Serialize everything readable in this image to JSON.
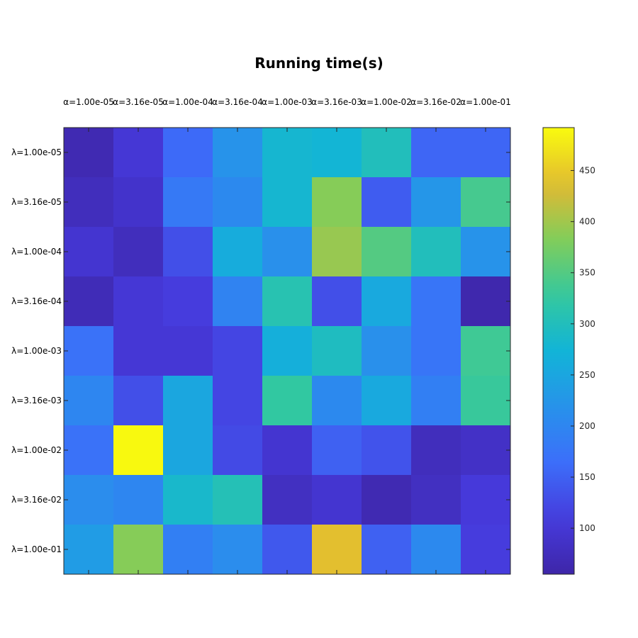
{
  "chart_data": {
    "type": "heatmap",
    "title": "Running time(s)",
    "xlabel": "",
    "ylabel": "",
    "x_categories": [
      "α=1.00e-05",
      "α=3.16e-05",
      "α=1.00e-04",
      "α=3.16e-04",
      "α=1.00e-03",
      "α=3.16e-03",
      "α=1.00e-02",
      "α=3.16e-02",
      "α=1.00e-01"
    ],
    "y_categories": [
      "λ=1.00e-05",
      "λ=3.16e-05",
      "λ=1.00e-04",
      "λ=3.16e-04",
      "λ=1.00e-03",
      "λ=3.16e-03",
      "λ=1.00e-02",
      "λ=3.16e-02",
      "λ=1.00e-01"
    ],
    "values": [
      [
        65,
        100,
        160,
        220,
        280,
        275,
        300,
        155,
        155
      ],
      [
        75,
        90,
        180,
        205,
        280,
        385,
        145,
        225,
        340
      ],
      [
        95,
        75,
        130,
        260,
        215,
        395,
        350,
        300,
        220
      ],
      [
        70,
        100,
        110,
        195,
        310,
        130,
        255,
        175,
        60
      ],
      [
        170,
        100,
        100,
        120,
        265,
        295,
        215,
        175,
        335
      ],
      [
        200,
        130,
        250,
        120,
        325,
        205,
        255,
        190,
        330
      ],
      [
        170,
        490,
        250,
        125,
        95,
        150,
        135,
        75,
        85
      ],
      [
        210,
        200,
        285,
        305,
        80,
        95,
        65,
        80,
        105
      ],
      [
        235,
        385,
        190,
        210,
        140,
        440,
        150,
        205,
        110
      ]
    ],
    "colorbar": {
      "ticks": [
        100,
        150,
        200,
        250,
        300,
        350,
        400,
        450
      ],
      "range": [
        55,
        492
      ]
    },
    "colormap": "parula",
    "grid": false
  }
}
